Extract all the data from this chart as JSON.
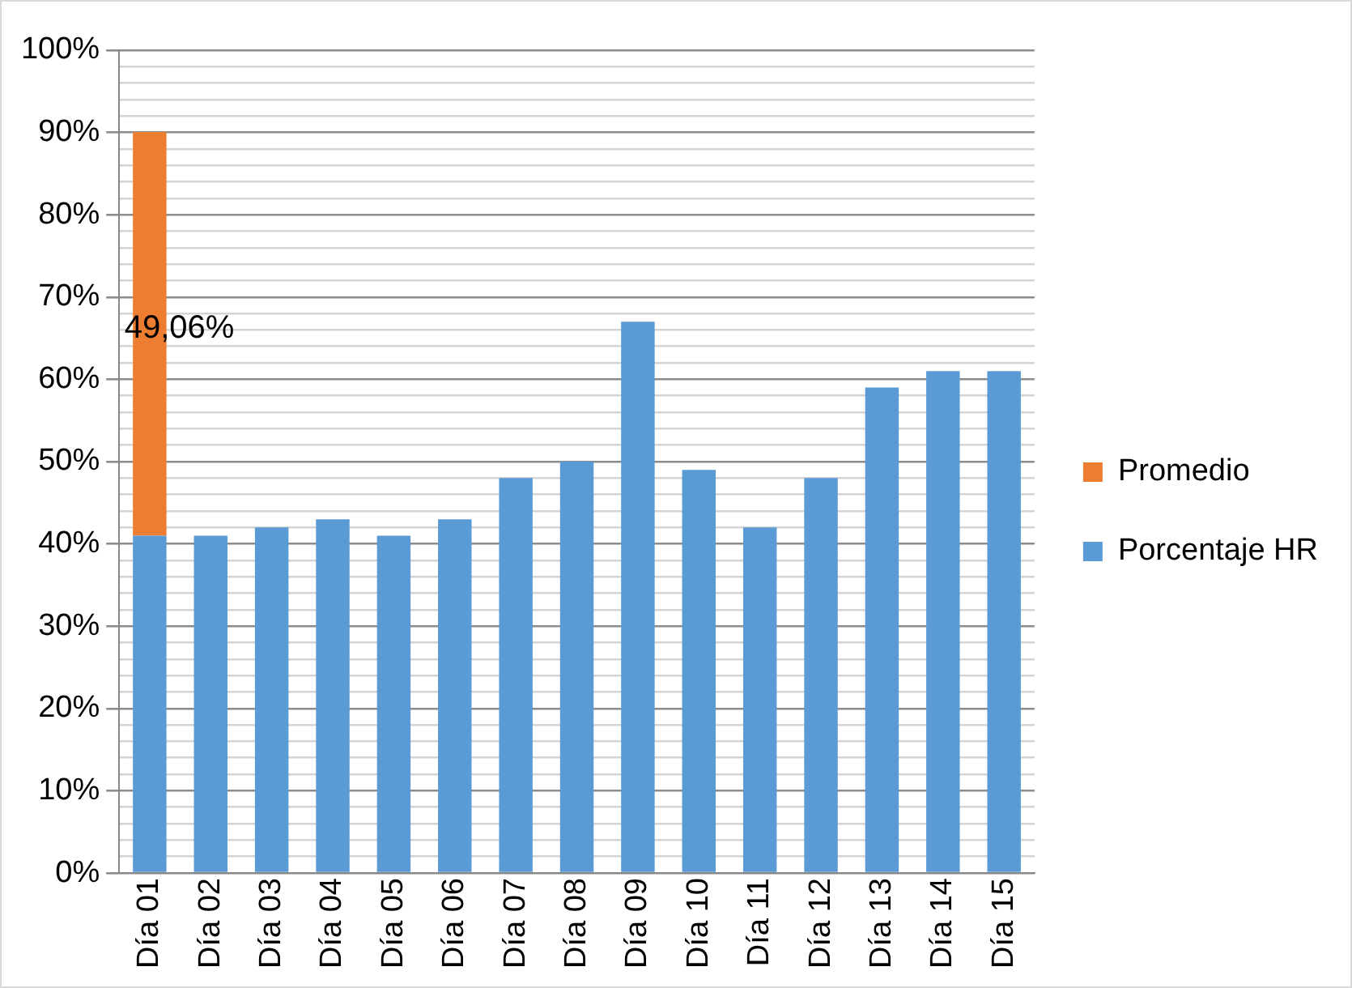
{
  "chart_data": {
    "type": "bar",
    "stacked": true,
    "categories": [
      "Día 01",
      "Día 02",
      "Día 03",
      "Día 04",
      "Día 05",
      "Día 06",
      "Día 07",
      "Día 08",
      "Día 09",
      "Día 10",
      "Día 11",
      "Día 12",
      "Día 13",
      "Día 14",
      "Día 15"
    ],
    "series": [
      {
        "name": "Porcentaje HR",
        "color": "#5b9bd5",
        "values": [
          41,
          41,
          42,
          43,
          41,
          43,
          48,
          50,
          67,
          49,
          42,
          48,
          59,
          61,
          61
        ]
      },
      {
        "name": "Promedio",
        "color": "#ed7d31",
        "values": [
          49.06,
          null,
          null,
          null,
          null,
          null,
          null,
          null,
          null,
          null,
          null,
          null,
          null,
          null,
          null
        ],
        "value_labels": [
          "49,06%",
          null,
          null,
          null,
          null,
          null,
          null,
          null,
          null,
          null,
          null,
          null,
          null,
          null,
          null
        ]
      }
    ],
    "ylim": [
      0,
      100
    ],
    "yticks": [
      {
        "value": 0,
        "label": "0%"
      },
      {
        "value": 2,
        "label": null
      },
      {
        "value": 4,
        "label": null
      },
      {
        "value": 6,
        "label": null
      },
      {
        "value": 8,
        "label": null
      },
      {
        "value": 10,
        "label": "10%"
      },
      {
        "value": 12,
        "label": null
      },
      {
        "value": 14,
        "label": null
      },
      {
        "value": 16,
        "label": null
      },
      {
        "value": 18,
        "label": null
      },
      {
        "value": 20,
        "label": "20%"
      },
      {
        "value": 22,
        "label": null
      },
      {
        "value": 24,
        "label": null
      },
      {
        "value": 26,
        "label": null
      },
      {
        "value": 28,
        "label": null
      },
      {
        "value": 30,
        "label": "30%"
      },
      {
        "value": 32,
        "label": null
      },
      {
        "value": 34,
        "label": null
      },
      {
        "value": 36,
        "label": null
      },
      {
        "value": 38,
        "label": null
      },
      {
        "value": 40,
        "label": "40%"
      },
      {
        "value": 42,
        "label": null
      },
      {
        "value": 44,
        "label": null
      },
      {
        "value": 46,
        "label": null
      },
      {
        "value": 48,
        "label": null
      },
      {
        "value": 50,
        "label": "50%"
      },
      {
        "value": 52,
        "label": null
      },
      {
        "value": 54,
        "label": null
      },
      {
        "value": 56,
        "label": null
      },
      {
        "value": 58,
        "label": null
      },
      {
        "value": 60,
        "label": "60%"
      },
      {
        "value": 62,
        "label": null
      },
      {
        "value": 64,
        "label": null
      },
      {
        "value": 66,
        "label": null
      },
      {
        "value": 68,
        "label": null
      },
      {
        "value": 70,
        "label": "70%"
      },
      {
        "value": 72,
        "label": null
      },
      {
        "value": 74,
        "label": null
      },
      {
        "value": 76,
        "label": null
      },
      {
        "value": 78,
        "label": null
      },
      {
        "value": 80,
        "label": "80%"
      },
      {
        "value": 82,
        "label": null
      },
      {
        "value": 84,
        "label": null
      },
      {
        "value": 86,
        "label": null
      },
      {
        "value": 88,
        "label": null
      },
      {
        "value": 90,
        "label": "90%"
      },
      {
        "value": 92,
        "label": null
      },
      {
        "value": 94,
        "label": null
      },
      {
        "value": 96,
        "label": null
      },
      {
        "value": 98,
        "label": null
      },
      {
        "value": 100,
        "label": "100%"
      }
    ],
    "grid": "y",
    "legend": "right"
  }
}
